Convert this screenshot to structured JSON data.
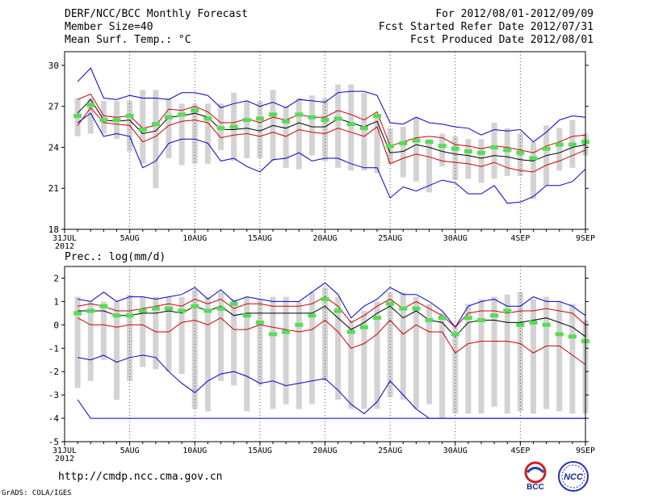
{
  "header": {
    "title": "DERF/NCC/BCC Monthly Forecast",
    "member_size": "Member Size=40",
    "variable": "Mean Surf. Temp.: °C",
    "period": "For 2012/08/01-2012/09/09",
    "fcst_started": "Fcst Started Refer Date 2012/07/31",
    "fcst_produced": "Fcst Produced Date 2012/08/01"
  },
  "footer": {
    "url": "http://cmdp.ncc.cma.gov.cn",
    "grads": "GrADS: COLA/IGES",
    "logo_bcc_text": "BCC",
    "logo_ncc_text": "NCC"
  },
  "colors": {
    "envelope": "#0000cc",
    "spread": "#cc0000",
    "mean": "#000000",
    "box": "#d3d3d3",
    "obs": "#55dd55"
  },
  "chart_data": [
    {
      "type": "line",
      "title": "Mean Surf. Temp.: °C",
      "ylabel": "",
      "ylim": [
        18,
        31
      ],
      "yticks": [
        18,
        21,
        24,
        27,
        30
      ],
      "xlim": [
        0,
        40
      ],
      "xticks": [
        {
          "x": 0,
          "label": "31JUL",
          "sub": "2012"
        },
        {
          "x": 5,
          "label": "5AUG"
        },
        {
          "x": 10,
          "label": "10AUG"
        },
        {
          "x": 15,
          "label": "15AUG"
        },
        {
          "x": 20,
          "label": "20AUG"
        },
        {
          "x": 25,
          "label": "25AUG"
        },
        {
          "x": 30,
          "label": "30AUG"
        },
        {
          "x": 35,
          "label": "4SEP"
        },
        {
          "x": 40,
          "label": "9SEP"
        }
      ],
      "x": [
        1,
        2,
        3,
        4,
        5,
        6,
        7,
        8,
        9,
        10,
        11,
        12,
        13,
        14,
        15,
        16,
        17,
        18,
        19,
        20,
        21,
        22,
        23,
        24,
        25,
        26,
        27,
        28,
        29,
        30,
        31,
        32,
        33,
        34,
        35,
        36,
        37,
        38,
        39,
        40
      ],
      "series": [
        {
          "name": "max",
          "values": [
            28.8,
            29.8,
            27.6,
            27.5,
            27.8,
            27.6,
            27.6,
            27.5,
            28.0,
            28.0,
            27.8,
            26.9,
            27.2,
            27.4,
            27.0,
            27.3,
            26.9,
            27.5,
            27.4,
            27.3,
            28.0,
            28.1,
            28.1,
            27.8,
            25.8,
            25.7,
            26.2,
            25.8,
            25.7,
            25.5,
            25.4,
            24.9,
            25.3,
            25.2,
            25.3,
            24.4,
            25.1,
            26.0,
            26.3,
            26.2
          ]
        },
        {
          "name": "upper",
          "values": [
            27.5,
            27.9,
            26.3,
            26.2,
            26.3,
            25.4,
            25.6,
            26.8,
            26.7,
            27.0,
            26.6,
            25.8,
            25.8,
            26.1,
            25.8,
            26.2,
            26.0,
            26.4,
            26.2,
            26.2,
            26.7,
            26.4,
            26.0,
            26.6,
            24.1,
            24.4,
            24.7,
            24.8,
            24.7,
            24.2,
            24.1,
            23.9,
            24.1,
            24.0,
            23.8,
            23.6,
            24.1,
            24.4,
            24.8,
            24.9
          ]
        },
        {
          "name": "mean",
          "values": [
            26.5,
            27.5,
            26.0,
            25.9,
            26.0,
            25.0,
            25.2,
            26.2,
            26.3,
            26.5,
            26.2,
            25.3,
            25.3,
            25.4,
            25.2,
            25.6,
            25.4,
            25.8,
            25.5,
            25.5,
            26.1,
            25.8,
            25.5,
            25.9,
            23.6,
            23.7,
            24.2,
            24.0,
            23.7,
            23.5,
            23.4,
            23.2,
            23.4,
            23.3,
            23.1,
            23.0,
            23.4,
            23.6,
            24.0,
            24.2
          ]
        },
        {
          "name": "lower",
          "values": [
            25.6,
            26.9,
            25.8,
            25.7,
            25.6,
            24.4,
            24.8,
            25.6,
            25.9,
            26.0,
            25.8,
            24.7,
            24.9,
            25.0,
            24.8,
            25.1,
            24.8,
            25.3,
            25.1,
            25.0,
            25.4,
            25.1,
            24.8,
            25.5,
            22.8,
            23.2,
            23.5,
            23.3,
            23.0,
            22.9,
            22.8,
            22.6,
            22.9,
            22.5,
            22.3,
            22.2,
            22.7,
            23.0,
            23.4,
            23.8
          ]
        },
        {
          "name": "min",
          "values": [
            25.8,
            26.5,
            24.8,
            25.0,
            24.8,
            22.5,
            23.0,
            24.3,
            24.6,
            24.6,
            24.3,
            23.0,
            23.2,
            22.6,
            22.2,
            23.1,
            23.2,
            23.6,
            23.0,
            23.2,
            23.2,
            22.8,
            22.5,
            22.5,
            20.3,
            21.1,
            20.8,
            21.2,
            21.6,
            21.4,
            20.6,
            20.6,
            21.2,
            19.9,
            20.0,
            20.4,
            21.2,
            21.2,
            21.5,
            22.4
          ]
        }
      ],
      "boxes": {
        "low": [
          24.8,
          25.0,
          25.0,
          24.6,
          23.7,
          22.8,
          21.0,
          23.2,
          22.7,
          22.8,
          22.8,
          23.8,
          23.0,
          23.2,
          23.2,
          23.0,
          22.5,
          22.4,
          23.4,
          23.0,
          22.5,
          22.3,
          22.3,
          22.1,
          22.8,
          21.8,
          21.5,
          20.7,
          22.6,
          21.6,
          21.7,
          21.4,
          21.7,
          21.9,
          21.9,
          20.2,
          21.2,
          22.3,
          22.5,
          23.4
        ],
        "high": [
          27.6,
          27.6,
          27.4,
          27.4,
          27.4,
          28.2,
          28.2,
          27.6,
          27.2,
          27.2,
          27.2,
          27.2,
          28.0,
          27.4,
          27.4,
          28.2,
          27.0,
          27.6,
          27.8,
          27.6,
          28.6,
          28.6,
          28.0,
          26.4,
          25.4,
          25.5,
          26.2,
          24.6,
          25.0,
          24.8,
          24.6,
          24.6,
          25.8,
          25.4,
          25.0,
          24.4,
          25.6,
          25.4,
          26.0,
          25.0
        ]
      },
      "observed": [
        26.3,
        27.1,
        26.0,
        26.0,
        26.3,
        25.3,
        25.7,
        26.2,
        26.4,
        26.7,
        26.1,
        25.4,
        25.5,
        26.0,
        26.1,
        26.4,
        25.9,
        26.4,
        26.2,
        26.0,
        26.1,
        25.7,
        25.4,
        26.3,
        24.1,
        24.3,
        24.5,
        24.4,
        24.1,
        23.9,
        23.7,
        23.6,
        24.0,
        23.8,
        23.6,
        23.2,
        23.9,
        24.2,
        24.2,
        24.4
      ]
    },
    {
      "type": "line",
      "title": "Prec.: log(mm/d)",
      "ylabel": "",
      "ylim": [
        -5,
        2.5
      ],
      "yticks": [
        -5,
        -4,
        -3,
        -2,
        -1,
        0,
        1,
        2
      ],
      "xlim": [
        0,
        40
      ],
      "xticks": [
        {
          "x": 0,
          "label": "31JUL",
          "sub": "2012"
        },
        {
          "x": 5,
          "label": "5AUG"
        },
        {
          "x": 10,
          "label": "10AUG"
        },
        {
          "x": 15,
          "label": "15AUG"
        },
        {
          "x": 20,
          "label": "20AUG"
        },
        {
          "x": 25,
          "label": "25AUG"
        },
        {
          "x": 30,
          "label": "30AUG"
        },
        {
          "x": 35,
          "label": "4SEP"
        },
        {
          "x": 40,
          "label": "9SEP"
        }
      ],
      "x": [
        1,
        2,
        3,
        4,
        5,
        6,
        7,
        8,
        9,
        10,
        11,
        12,
        13,
        14,
        15,
        16,
        17,
        18,
        19,
        20,
        21,
        22,
        23,
        24,
        25,
        26,
        27,
        28,
        29,
        30,
        31,
        32,
        33,
        34,
        35,
        36,
        37,
        38,
        39,
        40
      ],
      "series": [
        {
          "name": "max",
          "values": [
            1.1,
            1.0,
            1.4,
            1.0,
            1.2,
            1.2,
            1.1,
            1.2,
            1.3,
            1.6,
            1.1,
            1.5,
            1.0,
            1.2,
            1.1,
            1.0,
            1.0,
            1.0,
            1.4,
            1.8,
            1.3,
            0.3,
            0.8,
            1.1,
            1.6,
            1.3,
            1.3,
            1.0,
            0.6,
            -0.1,
            0.8,
            1.0,
            1.1,
            0.8,
            0.8,
            1.2,
            1.0,
            1.0,
            0.8,
            0.4
          ]
        },
        {
          "name": "upper",
          "values": [
            0.8,
            0.9,
            0.8,
            0.6,
            0.6,
            0.7,
            0.8,
            0.9,
            0.8,
            1.1,
            0.9,
            1.1,
            0.7,
            0.9,
            0.9,
            0.8,
            0.8,
            0.8,
            0.9,
            1.2,
            0.8,
            0.1,
            0.4,
            0.8,
            1.1,
            0.7,
            1.0,
            0.7,
            0.4,
            -0.1,
            0.5,
            0.6,
            0.6,
            0.5,
            0.6,
            0.6,
            0.7,
            0.6,
            0.5,
            0.0
          ]
        },
        {
          "name": "mean",
          "values": [
            0.6,
            0.6,
            0.6,
            0.4,
            0.4,
            0.5,
            0.5,
            0.6,
            0.5,
            0.8,
            0.6,
            0.8,
            0.4,
            0.5,
            0.5,
            0.5,
            0.5,
            0.5,
            0.5,
            0.8,
            0.3,
            -0.2,
            0.1,
            0.5,
            0.8,
            0.3,
            0.6,
            0.2,
            0.1,
            -0.5,
            0.1,
            0.2,
            0.2,
            0.1,
            0.1,
            0.2,
            0.3,
            0.1,
            -0.1,
            -0.5
          ]
        },
        {
          "name": "lower",
          "values": [
            0.3,
            0.0,
            0.0,
            -0.1,
            0.0,
            0.0,
            -0.3,
            -0.3,
            0.1,
            0.2,
            0.0,
            0.3,
            -0.2,
            -0.2,
            0.0,
            -0.1,
            -0.2,
            -0.3,
            -0.2,
            0.2,
            -0.3,
            -1.0,
            -0.8,
            -0.4,
            0.2,
            -0.4,
            0.0,
            -0.3,
            -0.3,
            -1.2,
            -0.8,
            -0.7,
            -0.7,
            -0.7,
            -0.8,
            -1.2,
            -0.9,
            -0.9,
            -1.3,
            -1.7
          ]
        },
        {
          "name": "min",
          "values": [
            -1.4,
            -1.5,
            -1.3,
            -1.6,
            -1.4,
            -1.3,
            -1.4,
            -2.0,
            -2.5,
            -2.9,
            -2.4,
            -2.1,
            -2.0,
            -2.2,
            -2.5,
            -2.4,
            -2.6,
            -2.5,
            -2.4,
            -2.3,
            -2.8,
            -3.4,
            -3.8,
            -3.3,
            -2.4,
            -3.0,
            -3.6,
            -4.0,
            -4.0,
            -4.0,
            -4.0,
            -4.0,
            -4.0,
            -4.0,
            -4.0,
            -4.0,
            -4.0,
            -4.0,
            -4.0,
            -4.0
          ]
        },
        {
          "name": "envelope_low",
          "values": [
            -3.2,
            -4.0,
            -4.0,
            -4.0,
            -4.0,
            -4.0,
            -4.0,
            -4.0,
            -4.0,
            -4.0,
            -4.0,
            -4.0,
            -4.0,
            -4.0,
            -4.0,
            -4.0,
            -4.0,
            -4.0,
            -4.0,
            -4.0,
            -4.0,
            -4.0,
            -4.0,
            -4.0,
            -4.0,
            -4.0,
            -4.0,
            -4.0,
            -4.0,
            -4.0,
            -4.0,
            -4.0,
            -4.0,
            -4.0,
            -4.0,
            -4.0,
            -4.0,
            -4.0,
            -4.0,
            -4.0
          ]
        }
      ],
      "boxes": {
        "low": [
          -2.7,
          -2.4,
          -1.5,
          -3.2,
          -2.4,
          -1.8,
          -1.9,
          -2.0,
          -2.1,
          -3.6,
          -3.7,
          -2.4,
          -2.6,
          -3.7,
          -2.6,
          -3.6,
          -3.4,
          -3.6,
          -3.4,
          -2.4,
          -3.2,
          -3.6,
          -3.6,
          -3.6,
          -3.1,
          -3.2,
          -3.6,
          -3.4,
          -4.0,
          -3.8,
          -3.8,
          -3.8,
          -3.5,
          -3.8,
          -3.7,
          -3.8,
          -3.6,
          -3.7,
          -3.8,
          -3.8
        ],
        "high": [
          1.2,
          1.0,
          1.0,
          1.0,
          1.3,
          1.2,
          1.2,
          1.2,
          1.2,
          1.5,
          1.2,
          1.4,
          1.1,
          1.2,
          1.1,
          1.2,
          1.2,
          1.0,
          1.4,
          1.6,
          1.2,
          0.2,
          0.6,
          1.0,
          1.4,
          1.4,
          1.2,
          0.9,
          0.5,
          0.0,
          0.9,
          1.1,
          1.2,
          1.3,
          1.4,
          1.1,
          1.2,
          1.0,
          0.9,
          0.2
        ]
      },
      "observed": [
        0.5,
        0.6,
        0.8,
        0.4,
        0.4,
        0.6,
        0.7,
        0.7,
        0.6,
        0.8,
        0.6,
        0.7,
        0.9,
        0.4,
        0.1,
        -0.4,
        -0.3,
        0.0,
        0.4,
        1.1,
        0.6,
        -0.3,
        -0.1,
        0.3,
        0.9,
        0.7,
        0.7,
        0.2,
        0.3,
        -0.4,
        0.3,
        0.2,
        0.4,
        0.6,
        0.0,
        0.1,
        0.0,
        -0.4,
        -0.5,
        -0.7
      ]
    }
  ]
}
